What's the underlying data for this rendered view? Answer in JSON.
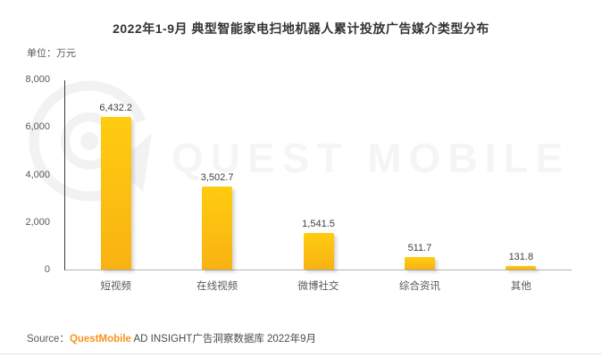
{
  "header": {
    "unit_label": "单位：万元"
  },
  "watermark": {
    "text": "QUEST MOBILE"
  },
  "chart_data": {
    "type": "bar",
    "title": "2022年1-9月 典型智能家电扫地机器人累计投放广告媒介类型分布",
    "unit": "万元",
    "categories": [
      "短视频",
      "在线视频",
      "微博社交",
      "综合资讯",
      "其他"
    ],
    "values": [
      6432.2,
      3502.7,
      1541.5,
      511.7,
      131.8
    ],
    "value_labels": [
      "6,432.2",
      "3,502.7",
      "1,541.5",
      "511.7",
      "131.8"
    ],
    "ylabel": "万元",
    "xlabel": "",
    "ylim": [
      0,
      8000
    ],
    "yticks": [
      8000,
      6000,
      4000,
      2000,
      0
    ],
    "ytick_labels": [
      "8,000",
      "6,000",
      "4,000",
      "2,000",
      "0"
    ],
    "grid": false,
    "legend": null,
    "bar_color_top": "#FFCC10",
    "bar_color_bottom": "#F9B213",
    "watermark_color": "#f3f3f3"
  },
  "source": {
    "label": "Source：",
    "brand": "QuestMobile",
    "rest": " AD INSIGHT广告洞察数据库 2022年9月",
    "brand_color": "#F7941E"
  }
}
